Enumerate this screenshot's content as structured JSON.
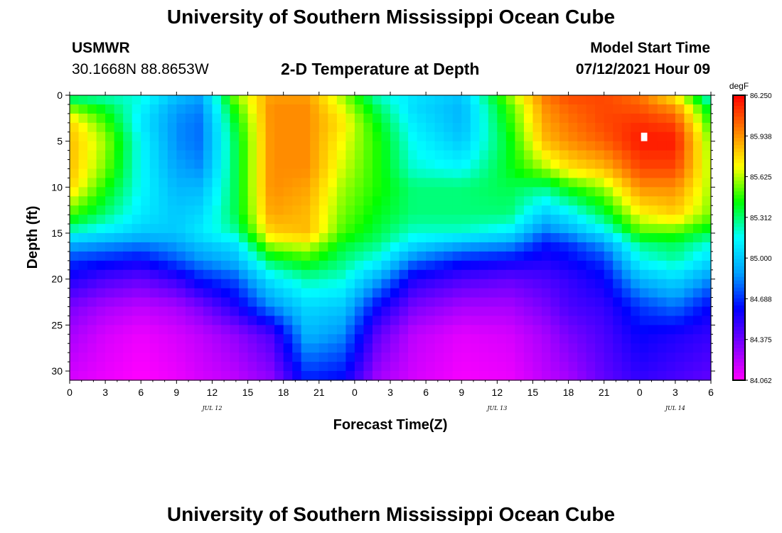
{
  "header": {
    "title_top": "University of Southern Mississippi Ocean Cube",
    "title_bottom": "University of Southern Mississippi Ocean Cube",
    "station": "USMWR",
    "coords": "30.1668N  88.8653W",
    "product": "2-D Temperature at Depth",
    "model_label": "Model Start Time",
    "model_time": "07/12/2021 Hour 09"
  },
  "chart_data": {
    "type": "heatmap",
    "title": "2-D Temperature at Depth",
    "xlabel": "Forecast Time(Z)",
    "ylabel": "Depth (ft)",
    "units": "degF",
    "x_hours_range": [
      0,
      54
    ],
    "y_range": [
      0,
      31
    ],
    "x_tick_labels": [
      "0",
      "3",
      "6",
      "9",
      "12",
      "15",
      "18",
      "21",
      "0",
      "3",
      "6",
      "9",
      "12",
      "15",
      "18",
      "21",
      "0",
      "3",
      "6"
    ],
    "y_ticks": [
      0,
      5,
      10,
      15,
      20,
      25,
      30
    ],
    "day_labels": [
      {
        "label": "JUL 12",
        "hour": 12
      },
      {
        "label": "JUL 13",
        "hour": 36
      },
      {
        "label": "JUL 14",
        "hour": 51
      }
    ],
    "colorbar": {
      "min": 84.062,
      "max": 86.25,
      "labels": [
        "86.250",
        "85.938",
        "85.625",
        "85.312",
        "85.000",
        "84.688",
        "84.375",
        "84.062"
      ],
      "colors": [
        "#ff00ff",
        "#7f00ff",
        "#0000ff",
        "#00a0ff",
        "#00ffff",
        "#00ff00",
        "#ffff00",
        "#ff8000",
        "#ff0000"
      ]
    },
    "depth_profile": [
      0,
      1,
      3,
      5,
      8,
      10,
      13,
      15,
      16,
      18,
      20,
      23,
      26,
      31
    ],
    "profiles": [
      {
        "hour": 0,
        "temps": [
          85.2,
          85.5,
          85.8,
          85.85,
          85.85,
          85.8,
          85.5,
          85.2,
          84.95,
          84.7,
          84.55,
          84.35,
          84.25,
          84.15
        ]
      },
      {
        "hour": 3,
        "temps": [
          85.2,
          85.35,
          85.5,
          85.6,
          85.55,
          85.45,
          85.3,
          85.1,
          84.9,
          84.65,
          84.45,
          84.25,
          84.15,
          84.1
        ]
      },
      {
        "hour": 6,
        "temps": [
          85.2,
          85.15,
          85.1,
          85.15,
          85.15,
          85.15,
          85.1,
          85.0,
          84.85,
          84.6,
          84.4,
          84.2,
          84.1,
          84.06
        ]
      },
      {
        "hour": 9,
        "temps": [
          85.0,
          84.9,
          84.85,
          84.85,
          84.9,
          84.95,
          85.0,
          85.0,
          84.9,
          84.75,
          84.5,
          84.25,
          84.15,
          84.1
        ]
      },
      {
        "hour": 11,
        "temps": [
          84.9,
          84.85,
          84.8,
          84.8,
          84.85,
          84.95,
          85.05,
          85.1,
          85.0,
          84.85,
          84.65,
          84.35,
          84.2,
          84.15
        ]
      },
      {
        "hour": 14,
        "temps": [
          85.6,
          85.5,
          85.4,
          85.35,
          85.35,
          85.35,
          85.35,
          85.25,
          85.1,
          84.95,
          84.75,
          84.55,
          84.3,
          84.2
        ]
      },
      {
        "hour": 17,
        "temps": [
          85.9,
          85.95,
          85.95,
          85.95,
          85.95,
          85.95,
          85.9,
          85.8,
          85.65,
          85.35,
          85.1,
          84.85,
          84.45,
          84.3
        ]
      },
      {
        "hour": 20,
        "temps": [
          85.9,
          85.95,
          85.95,
          85.95,
          85.95,
          85.9,
          85.85,
          85.85,
          85.7,
          85.45,
          85.25,
          85.05,
          84.95,
          84.65
        ]
      },
      {
        "hour": 23,
        "temps": [
          85.6,
          85.65,
          85.75,
          85.7,
          85.65,
          85.6,
          85.55,
          85.5,
          85.4,
          85.3,
          85.2,
          85.0,
          84.85,
          84.6
        ]
      },
      {
        "hour": 26,
        "temps": [
          85.2,
          85.3,
          85.4,
          85.45,
          85.45,
          85.45,
          85.4,
          85.35,
          85.3,
          85.15,
          84.9,
          84.6,
          84.4,
          84.25
        ]
      },
      {
        "hour": 29,
        "temps": [
          85.1,
          85.05,
          85.1,
          85.15,
          85.2,
          85.3,
          85.3,
          85.2,
          85.1,
          84.8,
          84.55,
          84.35,
          84.2,
          84.15
        ]
      },
      {
        "hour": 33,
        "temps": [
          85.0,
          84.95,
          84.95,
          85.0,
          85.15,
          85.3,
          85.3,
          85.2,
          84.95,
          84.65,
          84.45,
          84.25,
          84.12,
          84.08
        ]
      },
      {
        "hour": 37,
        "temps": [
          85.6,
          85.5,
          85.45,
          85.4,
          85.4,
          85.35,
          85.3,
          85.1,
          84.9,
          84.6,
          84.4,
          84.25,
          84.15,
          84.1
        ]
      },
      {
        "hour": 40,
        "temps": [
          86.0,
          85.95,
          85.9,
          85.85,
          85.6,
          85.3,
          85.0,
          84.8,
          84.65,
          84.55,
          84.45,
          84.35,
          84.25,
          84.2
        ]
      },
      {
        "hour": 42,
        "temps": [
          86.1,
          86.05,
          86.0,
          85.95,
          85.75,
          85.45,
          85.1,
          84.9,
          84.7,
          84.6,
          84.5,
          84.45,
          84.35,
          84.25
        ]
      },
      {
        "hour": 45,
        "temps": [
          86.1,
          86.1,
          86.1,
          86.05,
          85.85,
          85.6,
          85.35,
          85.1,
          84.9,
          84.7,
          84.6,
          84.5,
          84.45,
          84.4
        ]
      },
      {
        "hour": 48,
        "temps": [
          86.0,
          86.05,
          86.15,
          86.2,
          86.1,
          85.95,
          85.7,
          85.5,
          85.3,
          85.15,
          84.95,
          84.7,
          84.6,
          84.5
        ]
      },
      {
        "hour": 51,
        "temps": [
          85.7,
          85.9,
          86.1,
          86.2,
          86.1,
          85.95,
          85.8,
          85.5,
          85.35,
          85.25,
          85.05,
          84.8,
          84.55,
          84.45
        ]
      },
      {
        "hour": 54,
        "temps": [
          85.1,
          85.3,
          85.45,
          85.55,
          85.6,
          85.6,
          85.55,
          85.35,
          85.2,
          85.05,
          84.85,
          84.6,
          84.5,
          84.4
        ]
      }
    ]
  }
}
